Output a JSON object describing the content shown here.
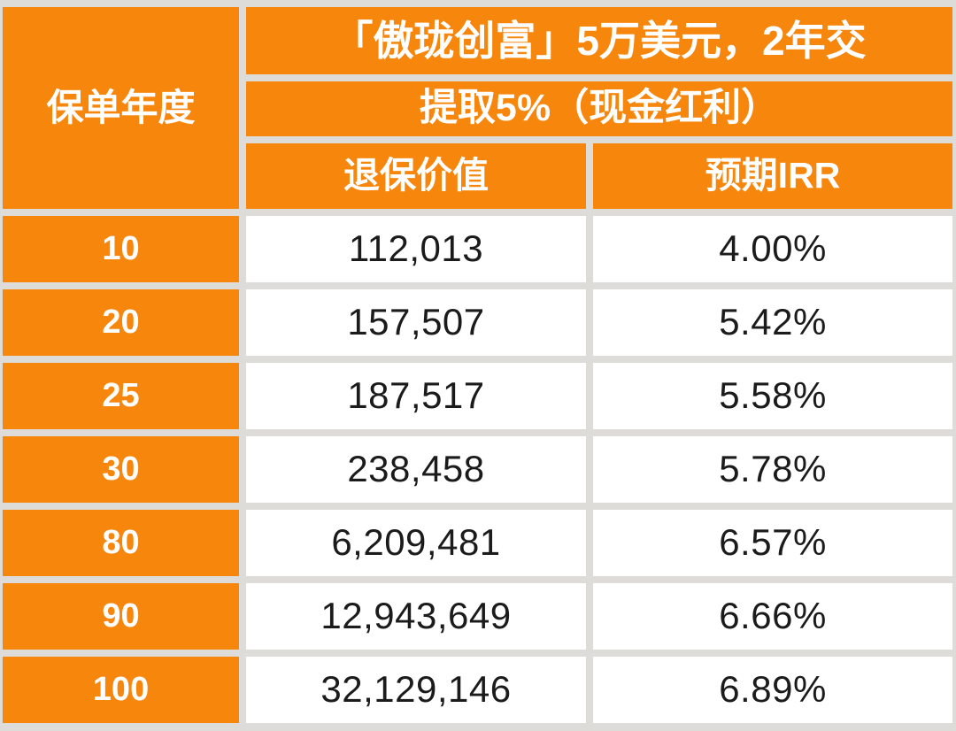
{
  "table": {
    "corner_header": "保单年度",
    "title": "「傲珑创富」5万美元，2年交",
    "subtitle": "提取5%（现金红利）",
    "col_surrender_value": "退保价值",
    "col_irr": "预期IRR",
    "rows": [
      {
        "year": "10",
        "surrender_value": "112,013",
        "irr": "4.00%"
      },
      {
        "year": "20",
        "surrender_value": "157,507",
        "irr": "5.42%"
      },
      {
        "year": "25",
        "surrender_value": "187,517",
        "irr": "5.58%"
      },
      {
        "year": "30",
        "surrender_value": "238,458",
        "irr": "5.78%"
      },
      {
        "year": "80",
        "surrender_value": "6,209,481",
        "irr": "6.57%"
      },
      {
        "year": "90",
        "surrender_value": "12,943,649",
        "irr": "6.66%"
      },
      {
        "year": "100",
        "surrender_value": "32,129,146",
        "irr": "6.89%"
      }
    ]
  },
  "colors": {
    "header_orange": "#F7860D",
    "header_text": "#FFFFFF",
    "cell_background": "#FFFFFF",
    "cell_text": "#1B1B1B",
    "grid_gap": "#DEDCD8"
  },
  "chart_data": {
    "type": "table",
    "title": "「傲珑创富」5万美元，2年交",
    "subtitle": "提取5%（现金红利）",
    "columns": [
      "保单年度",
      "退保价值",
      "预期IRR"
    ],
    "rows": [
      [
        10,
        112013,
        "4.00%"
      ],
      [
        20,
        157507,
        "5.42%"
      ],
      [
        25,
        187517,
        "5.58%"
      ],
      [
        30,
        238458,
        "5.78%"
      ],
      [
        80,
        6209481,
        "6.57%"
      ],
      [
        90,
        12943649,
        "6.66%"
      ],
      [
        100,
        32129146,
        "6.89%"
      ]
    ],
    "notes": "Insurance policy illustration: surrender value and expected IRR by policy year, USD 50,000 premium paid over 2 years, 5% annual withdrawal (cash dividend)."
  }
}
